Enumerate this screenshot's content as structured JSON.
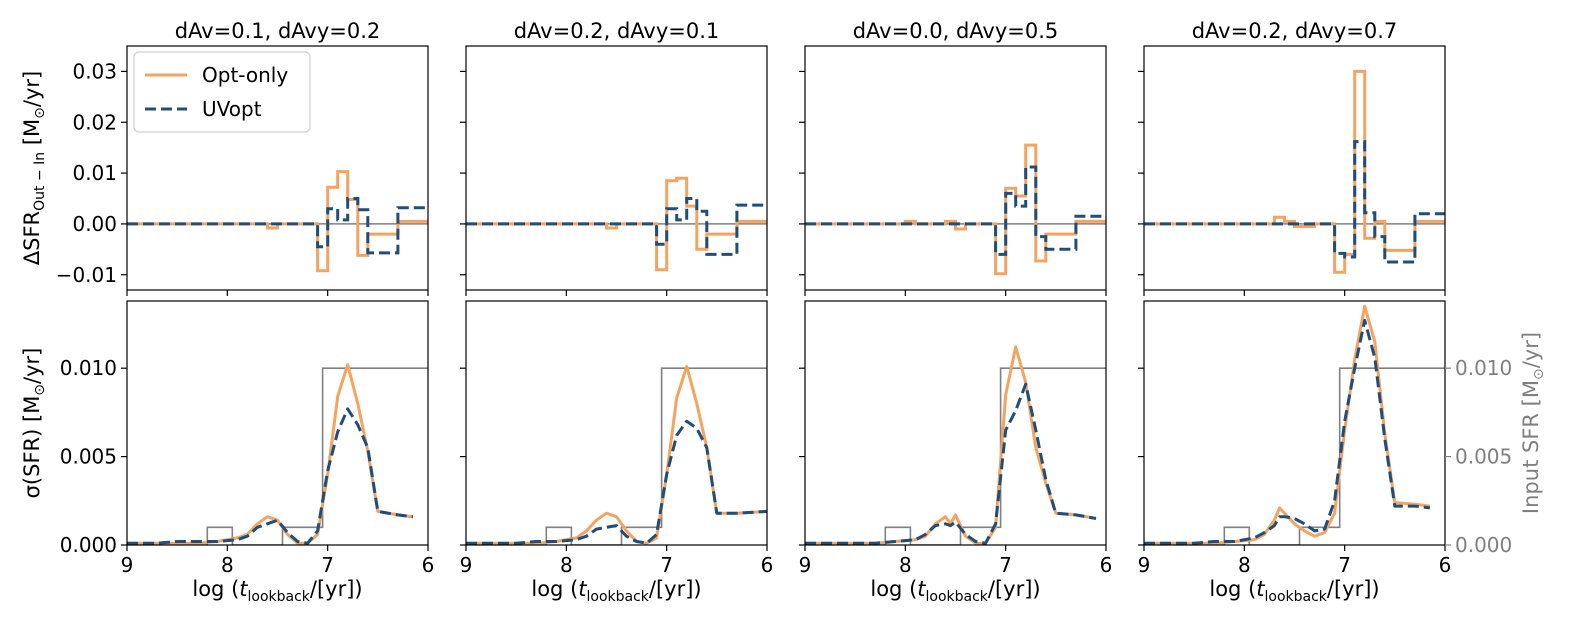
{
  "figure": {
    "description_type": "2x4 grid of step/line plots"
  },
  "chart_data": {
    "type": "line",
    "colors": {
      "opt": "#F4A460",
      "uv": "#1F4E7A",
      "input": "#808080"
    },
    "x_axis": {
      "label_prefix": "log (",
      "label_var": "t",
      "label_sub": "lookback",
      "label_suffix": "/[yr])",
      "xlim": [
        9,
        6
      ],
      "ticks": [
        9,
        8,
        7,
        6
      ],
      "tick_labels": [
        "9",
        "8",
        "7",
        "6"
      ]
    },
    "top_y_axis": {
      "label_main": "ΔSFR",
      "label_sub": "Out − In",
      "label_unit": " [M",
      "label_unit_sub": "⊙",
      "label_unit_end": "/yr]",
      "ylim": [
        -0.013,
        0.035
      ],
      "ticks": [
        -0.01,
        0.0,
        0.01,
        0.02,
        0.03
      ],
      "tick_labels": [
        "−0.01",
        "0.00",
        "0.01",
        "0.02",
        "0.03"
      ]
    },
    "bottom_y_axis": {
      "label_main": "σ(SFR) [M",
      "label_unit_sub": "⊙",
      "label_unit_end": "/yr]",
      "ylim": [
        0,
        0.0138
      ],
      "ticks": [
        0,
        0.005,
        0.01
      ],
      "tick_labels": [
        "0.000",
        "0.005",
        "0.010"
      ]
    },
    "right_y_axis": {
      "label": "Input SFR [M",
      "label_unit_sub": "⊙",
      "label_unit_end": "/yr]",
      "ylim": [
        0,
        0.0138
      ],
      "ticks": [
        0,
        0.005,
        0.01
      ],
      "tick_labels": [
        "0.000",
        "0.005",
        "0.010"
      ]
    },
    "legend": {
      "location": "top-left",
      "entries": [
        "Opt-only",
        "UVopt"
      ]
    },
    "input_sfr": {
      "x": [
        9.0,
        8.2,
        8.2,
        7.95,
        7.95,
        7.45,
        7.45,
        7.05,
        7.05,
        6.0
      ],
      "y": [
        0.0,
        0.0,
        0.001,
        0.001,
        0.0,
        0.0,
        0.001,
        0.001,
        0.01,
        0.01
      ]
    },
    "panels": [
      {
        "title": "dAv=0.1, dAvy=0.2",
        "top": {
          "edges": [
            9.0,
            8.9,
            8.8,
            8.7,
            8.6,
            8.5,
            8.4,
            8.3,
            8.2,
            8.1,
            8.0,
            7.9,
            7.8,
            7.7,
            7.6,
            7.5,
            7.4,
            7.3,
            7.2,
            7.1,
            7.0,
            6.9,
            6.8,
            6.7,
            6.6,
            6.3,
            6.0
          ],
          "opt": [
            0,
            0,
            0,
            0,
            0,
            0,
            0,
            0,
            0,
            0,
            0,
            0,
            0,
            0,
            -0.0008,
            0,
            0,
            0,
            0,
            -0.0092,
            0.0072,
            0.0103,
            0.0048,
            -0.0062,
            -0.002,
            0.0005
          ],
          "uv": [
            0,
            0,
            0,
            0,
            0,
            0,
            0,
            0,
            0,
            0,
            0,
            0,
            0,
            0,
            0,
            0,
            0,
            0,
            0,
            -0.0045,
            0.003,
            0.0008,
            0.005,
            0.0028,
            -0.0057,
            0.0032
          ]
        },
        "bottom": {
          "x": [
            9.0,
            8.9,
            8.7,
            8.5,
            8.3,
            8.1,
            7.9,
            7.8,
            7.7,
            7.6,
            7.5,
            7.4,
            7.3,
            7.2,
            7.1,
            7.0,
            6.9,
            6.8,
            6.7,
            6.6,
            6.5,
            6.3,
            6.15
          ],
          "opt": [
            0.0001,
            0.0001,
            0.0001,
            0.0001,
            0.0001,
            0.0002,
            0.0004,
            0.0006,
            0.0012,
            0.0016,
            0.0014,
            0.0006,
            0.0001,
            0.0001,
            0.0006,
            0.004,
            0.0084,
            0.0102,
            0.008,
            0.0053,
            0.0019,
            0.0017,
            0.0016
          ],
          "uv": [
            0.0001,
            0.0001,
            0.0001,
            0.0002,
            0.0002,
            0.0002,
            0.0003,
            0.0005,
            0.001,
            0.0012,
            0.0014,
            0.0007,
            0.0002,
            0.0001,
            0.0008,
            0.0042,
            0.0064,
            0.0077,
            0.0068,
            0.0055,
            0.0019,
            0.0017,
            0.0016
          ]
        },
        "right_axis": false,
        "show_y_labels": true
      },
      {
        "title": "dAv=0.2, dAvy=0.1",
        "top": {
          "edges": [
            9.0,
            8.9,
            8.8,
            8.7,
            8.6,
            8.5,
            8.4,
            8.3,
            8.2,
            8.1,
            8.0,
            7.9,
            7.8,
            7.7,
            7.6,
            7.5,
            7.4,
            7.3,
            7.2,
            7.1,
            7.0,
            6.9,
            6.8,
            6.7,
            6.6,
            6.3,
            6.0
          ],
          "opt": [
            0,
            0,
            0,
            0,
            0,
            0,
            0,
            0,
            0,
            0,
            0,
            0,
            0,
            0,
            -0.0008,
            0,
            0,
            0,
            0,
            -0.009,
            0.0085,
            0.009,
            0.0035,
            -0.005,
            -0.002,
            0.0005
          ],
          "uv": [
            0,
            0,
            0,
            0,
            0,
            0,
            0,
            0,
            0,
            0,
            0,
            0,
            0,
            0,
            0,
            0,
            0,
            0,
            0,
            -0.004,
            0.003,
            0.0008,
            0.005,
            0.0025,
            -0.006,
            0.0037
          ]
        },
        "bottom": {
          "x": [
            9.0,
            8.9,
            8.7,
            8.5,
            8.3,
            8.1,
            7.9,
            7.8,
            7.7,
            7.6,
            7.5,
            7.4,
            7.3,
            7.2,
            7.1,
            7.0,
            6.9,
            6.8,
            6.7,
            6.6,
            6.5,
            6.3,
            6.0
          ],
          "opt": [
            0.0001,
            0.0001,
            0.0001,
            0.0001,
            0.0001,
            0.0002,
            0.0004,
            0.0008,
            0.0014,
            0.0018,
            0.0016,
            0.0008,
            0.0002,
            0.0001,
            0.0004,
            0.004,
            0.0083,
            0.0101,
            0.008,
            0.0055,
            0.0018,
            0.0018,
            0.0019
          ],
          "uv": [
            0.0001,
            0.0001,
            0.0001,
            0.0001,
            0.0002,
            0.0002,
            0.0003,
            0.0005,
            0.0009,
            0.001,
            0.0011,
            0.0005,
            0.0002,
            0.0001,
            0.0006,
            0.004,
            0.0062,
            0.007,
            0.0066,
            0.0055,
            0.0018,
            0.0018,
            0.0019
          ]
        },
        "right_axis": false,
        "show_y_labels": false
      },
      {
        "title": "dAv=0.0, dAvy=0.5",
        "top": {
          "edges": [
            9.0,
            8.9,
            8.8,
            8.7,
            8.6,
            8.5,
            8.4,
            8.3,
            8.2,
            8.1,
            8.0,
            7.9,
            7.8,
            7.7,
            7.6,
            7.5,
            7.4,
            7.3,
            7.2,
            7.1,
            7.0,
            6.9,
            6.8,
            6.7,
            6.6,
            6.3,
            6.0
          ],
          "opt": [
            0,
            0,
            0,
            0,
            0,
            0,
            0,
            0,
            0,
            0,
            0.0005,
            0,
            0,
            0,
            0.0005,
            -0.001,
            0,
            0,
            0,
            -0.0098,
            0.007,
            0.0055,
            0.0155,
            -0.0073,
            -0.002,
            0.0005
          ],
          "uv": [
            0,
            0,
            0,
            0,
            0,
            0,
            0,
            0,
            0,
            0,
            0,
            0,
            0,
            0,
            0,
            0,
            0,
            0,
            0,
            -0.006,
            0.006,
            0.0035,
            0.0112,
            -0.0025,
            -0.005,
            0.0015
          ]
        },
        "bottom": {
          "x": [
            9.0,
            8.9,
            8.7,
            8.5,
            8.3,
            8.1,
            7.9,
            7.8,
            7.7,
            7.6,
            7.55,
            7.5,
            7.4,
            7.3,
            7.2,
            7.1,
            7.0,
            6.9,
            6.8,
            6.7,
            6.6,
            6.5,
            6.3,
            6.1
          ],
          "opt": [
            0.0001,
            0.0001,
            0.0001,
            0.0001,
            0.0001,
            0.0002,
            0.0003,
            0.0005,
            0.0012,
            0.0016,
            0.0012,
            0.0017,
            0.0005,
            0.0001,
            0.0001,
            0.001,
            0.0085,
            0.0112,
            0.0092,
            0.0055,
            0.0035,
            0.0018,
            0.0017,
            0.0015
          ],
          "uv": [
            0.0001,
            0.0001,
            0.0001,
            0.0001,
            0.0001,
            0.0002,
            0.0003,
            0.0006,
            0.0011,
            0.0012,
            0.0011,
            0.0013,
            0.0006,
            0.0002,
            0.0001,
            0.0012,
            0.0065,
            0.0076,
            0.0091,
            0.0065,
            0.0037,
            0.0018,
            0.0017,
            0.0015
          ]
        },
        "right_axis": false,
        "show_y_labels": false
      },
      {
        "title": "dAv=0.2, dAvy=0.7",
        "top": {
          "edges": [
            9.0,
            8.9,
            8.8,
            8.7,
            8.6,
            8.5,
            8.4,
            8.3,
            8.2,
            8.1,
            8.0,
            7.9,
            7.8,
            7.7,
            7.6,
            7.5,
            7.4,
            7.3,
            7.2,
            7.1,
            7.0,
            6.9,
            6.8,
            6.7,
            6.6,
            6.3,
            6.0
          ],
          "opt": [
            0,
            0,
            0,
            0,
            0,
            0,
            0,
            0,
            0,
            0,
            0,
            0,
            0,
            0.0013,
            0.0005,
            -0.0005,
            -0.0005,
            0,
            0,
            -0.0095,
            -0.006,
            0.03,
            -0.0028,
            0.0005,
            -0.0052,
            0.0005
          ],
          "uv": [
            0,
            0,
            0,
            0,
            0,
            0,
            0,
            0,
            0,
            0,
            0,
            0,
            0,
            0,
            0,
            0,
            0,
            0,
            0,
            -0.0058,
            -0.0065,
            0.0162,
            0.0022,
            -0.0025,
            -0.0075,
            0.002
          ]
        },
        "bottom": {
          "x": [
            9.0,
            8.9,
            8.7,
            8.5,
            8.3,
            8.1,
            7.9,
            7.8,
            7.7,
            7.65,
            7.6,
            7.5,
            7.4,
            7.3,
            7.2,
            7.1,
            7.0,
            6.9,
            6.8,
            6.7,
            6.6,
            6.5,
            6.3,
            6.15
          ],
          "opt": [
            0.0001,
            0.0001,
            0.0001,
            0.0001,
            0.0001,
            0.0002,
            0.0003,
            0.0006,
            0.0014,
            0.0021,
            0.0018,
            0.0012,
            0.0008,
            0.0005,
            0.0007,
            0.0018,
            0.0065,
            0.0105,
            0.0135,
            0.0115,
            0.0063,
            0.0024,
            0.0023,
            0.0022
          ],
          "uv": [
            0.0001,
            0.0001,
            0.0001,
            0.0001,
            0.0002,
            0.0002,
            0.0004,
            0.0007,
            0.0011,
            0.0016,
            0.0016,
            0.0015,
            0.0012,
            0.0008,
            0.0009,
            0.0025,
            0.007,
            0.01,
            0.0127,
            0.0106,
            0.006,
            0.0022,
            0.0022,
            0.0021
          ]
        },
        "right_axis": true,
        "show_y_labels": false
      }
    ]
  }
}
